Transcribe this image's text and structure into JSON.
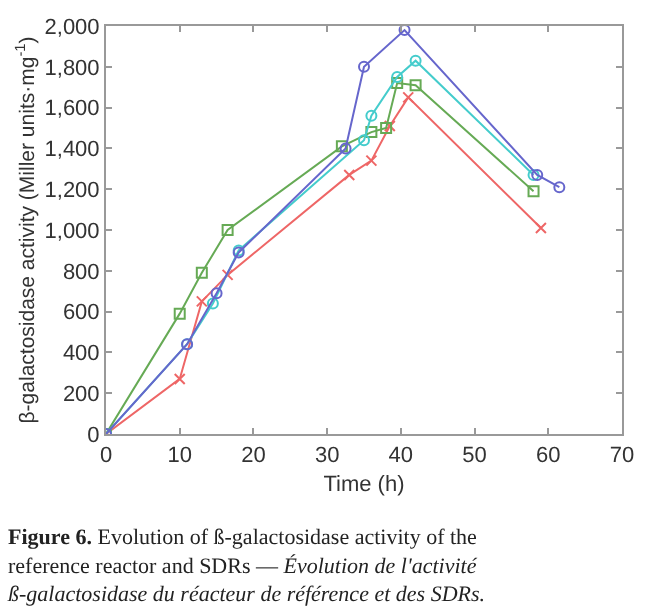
{
  "chart_data": {
    "type": "line",
    "xlabel": "Time (h)",
    "ylabel": "β-galactosidase activity (Miller units·mg$^{-1}$)",
    "xlim": [
      0,
      70
    ],
    "xticks": [
      0,
      10,
      20,
      30,
      40,
      50,
      60,
      70
    ],
    "ylim": [
      0,
      2000
    ],
    "yticks": [
      {
        "value": 0,
        "label": "0"
      },
      {
        "value": 200,
        "label": "200"
      },
      {
        "value": 400,
        "label": "400"
      },
      {
        "value": 600,
        "label": "600"
      },
      {
        "value": 800,
        "label": "800"
      },
      {
        "value": 1000,
        "label": "1,000"
      },
      {
        "value": 1200,
        "label": "1,200"
      },
      {
        "value": 1400,
        "label": "1,400"
      },
      {
        "value": 1600,
        "label": "1,600"
      },
      {
        "value": 1800,
        "label": "1,800"
      },
      {
        "value": 2000,
        "label": "2,000"
      }
    ],
    "line_style": "solid",
    "series": [
      {
        "color": "#ee6666",
        "marker": "cross",
        "x": [
          0,
          10,
          13,
          16.5,
          33,
          36,
          38.5,
          41,
          59
        ],
        "values": [
          0,
          270,
          650,
          780,
          1270,
          1340,
          1510,
          1650,
          1010
        ]
      },
      {
        "color": "#66aa55",
        "marker": "square",
        "x": [
          0,
          10,
          13,
          16.5,
          32,
          36,
          38,
          39.5,
          42,
          58
        ],
        "values": [
          0,
          590,
          790,
          1000,
          1410,
          1480,
          1500,
          1720,
          1710,
          1190
        ]
      },
      {
        "color": "#44cccc",
        "marker": "circle",
        "x": [
          0,
          11,
          14.5,
          18,
          35,
          36,
          39.5,
          42,
          58
        ],
        "values": [
          0,
          440,
          640,
          900,
          1440,
          1560,
          1750,
          1830,
          1270
        ]
      },
      {
        "color": "#6666cc",
        "marker": "circle",
        "x": [
          0,
          11,
          15,
          18,
          32.5,
          35,
          40.5,
          58.5,
          61.5
        ],
        "values": [
          0,
          440,
          690,
          890,
          1400,
          1800,
          1980,
          1270,
          1210
        ]
      }
    ],
    "annotations": [
      "Figure 6.",
      "Evolution of ß-galactosidase activity of the reference reactor and SDRs —",
      "Évolution de l'activité ß-galactosidase du réacteur de référence et des SDRs."
    ]
  }
}
